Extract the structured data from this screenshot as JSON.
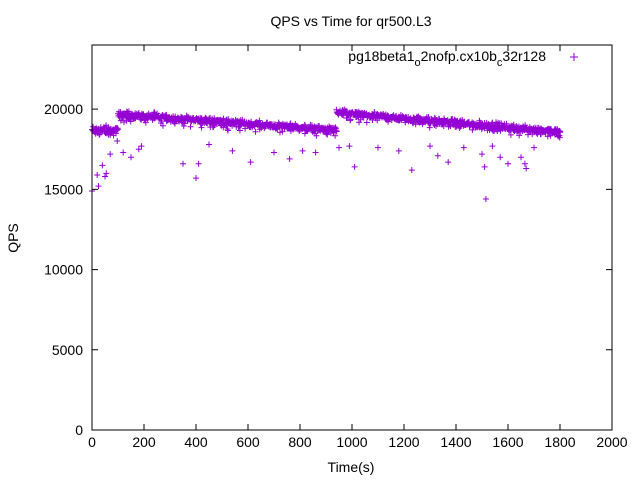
{
  "chart_data": {
    "type": "scatter",
    "title": "QPS vs Time for qr500.L3",
    "xlabel": "Time(s)",
    "ylabel": "QPS",
    "xlim": [
      0,
      2000
    ],
    "ylim": [
      0,
      24000
    ],
    "xticks": [
      0,
      200,
      400,
      600,
      800,
      1000,
      1200,
      1400,
      1600,
      1800,
      2000
    ],
    "yticks": [
      0,
      5000,
      10000,
      15000,
      20000
    ],
    "grid": false,
    "legend_position": "top-right",
    "marker": "+",
    "colors": {
      "series": "#9400d3",
      "axes": "#000000"
    },
    "series": [
      {
        "legend_main": "pg18beta1",
        "legend_sub1": "o",
        "legend_mid": "2nofp.cx10b",
        "legend_sub2": "c",
        "legend_tail": "32r128",
        "segments": [
          {
            "x_start": 0,
            "x_end": 100,
            "y_start": 18700,
            "y_end": 18700,
            "spread": 400
          },
          {
            "x_start": 100,
            "x_end": 940,
            "y_start": 19700,
            "y_end": 18700,
            "spread": 300
          },
          {
            "x_start": 940,
            "x_end": 1800,
            "y_start": 19800,
            "y_end": 18600,
            "spread": 300
          }
        ],
        "outliers": [
          [
            0,
            14900
          ],
          [
            20,
            15900
          ],
          [
            25,
            15200
          ],
          [
            40,
            16500
          ],
          [
            50,
            15800
          ],
          [
            55,
            16000
          ],
          [
            70,
            17200
          ],
          [
            120,
            17300
          ],
          [
            150,
            17000
          ],
          [
            180,
            17500
          ],
          [
            190,
            17700
          ],
          [
            350,
            16600
          ],
          [
            400,
            15700
          ],
          [
            410,
            16600
          ],
          [
            450,
            17800
          ],
          [
            540,
            17400
          ],
          [
            610,
            16700
          ],
          [
            700,
            17300
          ],
          [
            760,
            16900
          ],
          [
            810,
            17400
          ],
          [
            860,
            17300
          ],
          [
            950,
            17600
          ],
          [
            990,
            17700
          ],
          [
            1010,
            16400
          ],
          [
            1100,
            17600
          ],
          [
            1180,
            17400
          ],
          [
            1230,
            16200
          ],
          [
            1300,
            17700
          ],
          [
            1330,
            17100
          ],
          [
            1370,
            16700
          ],
          [
            1430,
            17600
          ],
          [
            1500,
            17200
          ],
          [
            1510,
            16400
          ],
          [
            1515,
            14400
          ],
          [
            1540,
            17700
          ],
          [
            1570,
            17000
          ],
          [
            1600,
            16600
          ],
          [
            1650,
            17000
          ],
          [
            1665,
            16600
          ],
          [
            1670,
            16300
          ],
          [
            1700,
            17600
          ]
        ]
      }
    ]
  }
}
